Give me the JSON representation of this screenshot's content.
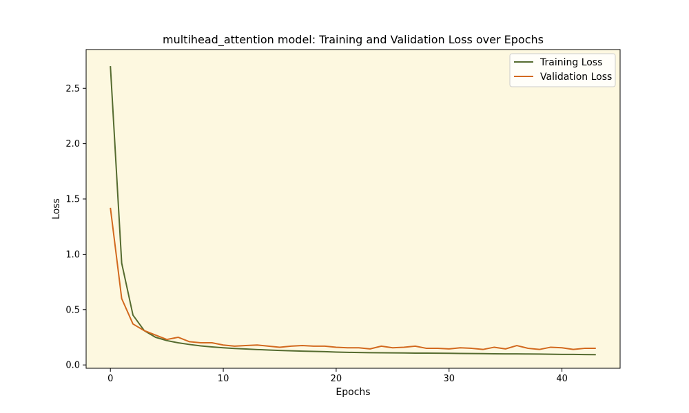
{
  "chart_data": {
    "type": "line",
    "title": "multihead_attention model: Training and Validation Loss over Epochs",
    "xlabel": "Epochs",
    "ylabel": "Loss",
    "xlim": [
      -2.15,
      45.15
    ],
    "ylim": [
      -0.03,
      2.85
    ],
    "xticks": [
      0,
      10,
      20,
      30,
      40
    ],
    "yticks": [
      0.0,
      0.5,
      1.0,
      1.5,
      2.0,
      2.5
    ],
    "ytick_labels": [
      "0.0",
      "0.5",
      "1.0",
      "1.5",
      "2.0",
      "2.5"
    ],
    "grid": false,
    "legend_position": "top-right",
    "background_color": "#fdf8e0",
    "x": [
      0,
      1,
      2,
      3,
      4,
      5,
      6,
      7,
      8,
      9,
      10,
      11,
      12,
      13,
      14,
      15,
      16,
      17,
      18,
      19,
      20,
      21,
      22,
      23,
      24,
      25,
      26,
      27,
      28,
      29,
      30,
      31,
      32,
      33,
      34,
      35,
      36,
      37,
      38,
      39,
      40,
      41,
      42,
      43
    ],
    "series": [
      {
        "name": "Training Loss",
        "color": "#556b2f",
        "values": [
          2.7,
          0.92,
          0.45,
          0.31,
          0.25,
          0.22,
          0.2,
          0.185,
          0.172,
          0.163,
          0.155,
          0.149,
          0.144,
          0.139,
          0.135,
          0.131,
          0.128,
          0.125,
          0.122,
          0.12,
          0.116,
          0.114,
          0.112,
          0.111,
          0.11,
          0.109,
          0.108,
          0.107,
          0.107,
          0.106,
          0.105,
          0.104,
          0.103,
          0.102,
          0.101,
          0.1,
          0.1,
          0.099,
          0.098,
          0.097,
          0.095,
          0.095,
          0.094,
          0.093
        ]
      },
      {
        "name": "Validation Loss",
        "color": "#d2691e",
        "values": [
          1.42,
          0.6,
          0.37,
          0.31,
          0.27,
          0.23,
          0.25,
          0.21,
          0.2,
          0.2,
          0.18,
          0.17,
          0.175,
          0.18,
          0.17,
          0.16,
          0.17,
          0.175,
          0.17,
          0.17,
          0.16,
          0.155,
          0.155,
          0.145,
          0.17,
          0.155,
          0.16,
          0.17,
          0.15,
          0.15,
          0.145,
          0.155,
          0.15,
          0.14,
          0.16,
          0.145,
          0.175,
          0.15,
          0.14,
          0.16,
          0.155,
          0.14,
          0.15,
          0.15
        ]
      }
    ]
  }
}
